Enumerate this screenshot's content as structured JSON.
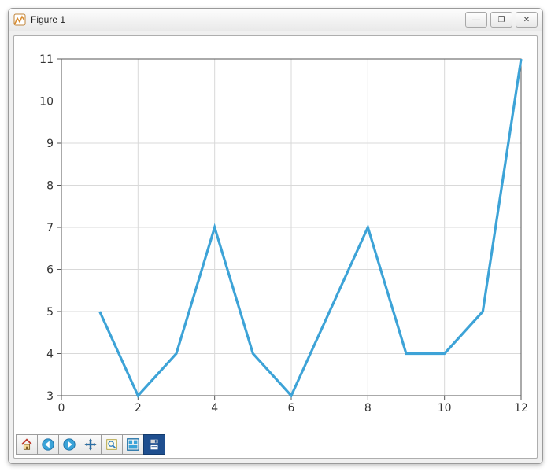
{
  "window": {
    "title": "Figure 1",
    "controls": {
      "minimize": "—",
      "maximize": "❐",
      "close": "✕"
    }
  },
  "chart": {
    "type": "line",
    "background_color": "#ffffff",
    "grid_color": "#d9d9d9",
    "axis_color": "#555555",
    "tick_fontsize": 14,
    "tick_color": "#333333",
    "line_color": "#3da3d7",
    "line_width": 3.2,
    "xlim": [
      0,
      12
    ],
    "ylim": [
      3,
      11
    ],
    "xticks": [
      0,
      2,
      4,
      6,
      8,
      10,
      12
    ],
    "yticks": [
      3,
      4,
      5,
      6,
      7,
      8,
      9,
      10,
      11
    ],
    "x": [
      1,
      2,
      3,
      4,
      5,
      6,
      7,
      8,
      9,
      10,
      11,
      12
    ],
    "y": [
      5,
      3,
      4,
      7,
      4,
      3,
      5,
      7,
      4,
      4,
      5,
      11
    ]
  },
  "toolbar": {
    "items": [
      {
        "name": "home-icon",
        "label": "Home"
      },
      {
        "name": "back-icon",
        "label": "Back"
      },
      {
        "name": "forward-icon",
        "label": "Forward"
      },
      {
        "name": "move-icon",
        "label": "Pan"
      },
      {
        "name": "zoom-rect-icon",
        "label": "Zoom"
      },
      {
        "name": "subplots-icon",
        "label": "Configure"
      },
      {
        "name": "save-icon",
        "label": "Save"
      }
    ]
  }
}
